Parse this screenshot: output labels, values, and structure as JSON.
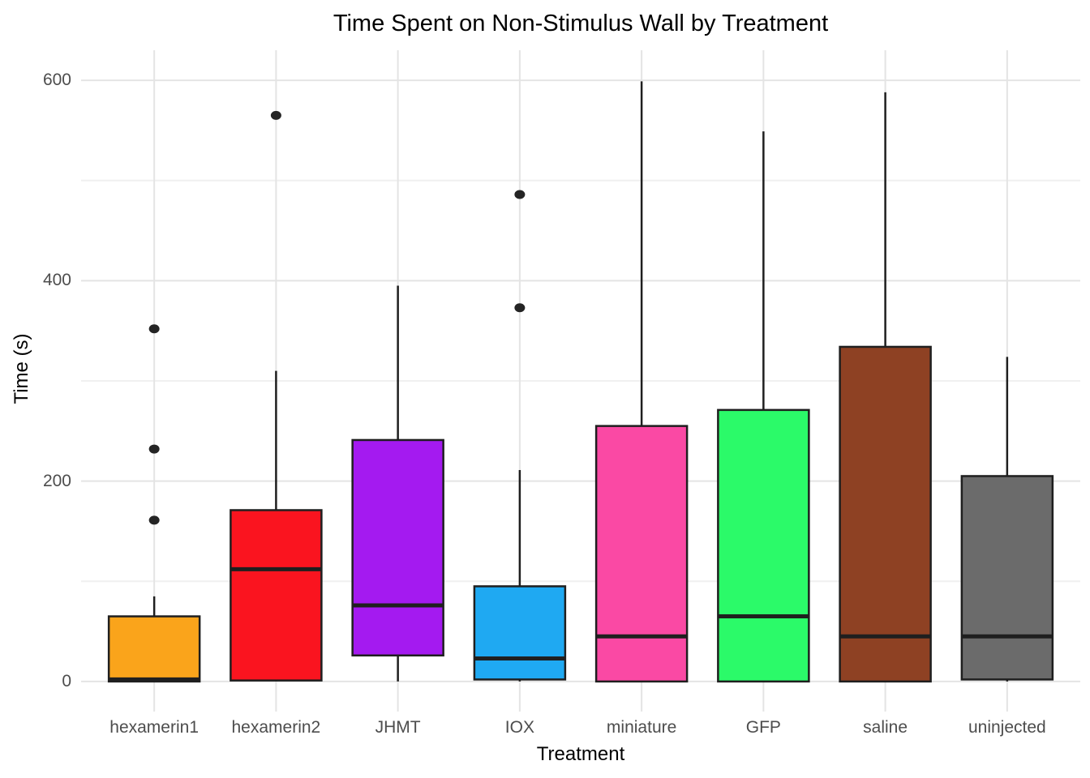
{
  "chart_data": {
    "type": "boxplot",
    "title": "Time Spent on Non-Stimulus Wall by Treatment",
    "xlabel": "Treatment",
    "ylabel": "Time (s)",
    "ylim": [
      -30,
      630
    ],
    "ytick_values": [
      0,
      200,
      400,
      600
    ],
    "ytick_labels": [
      "0",
      "200",
      "400",
      "600"
    ],
    "ytick_minor_values": [
      100,
      300,
      500
    ],
    "grid": {
      "horizontal_major": true,
      "horizontal_minor": true,
      "vertical_major_per_category": true
    },
    "legend_position": "none",
    "categories": [
      "hexamerin1",
      "hexamerin2",
      "JHMT",
      "IOX",
      "miniature",
      "GFP",
      "saline",
      "uninjected"
    ],
    "series": [
      {
        "name": "hexamerin1",
        "fill": "#FAA41B",
        "whisker_low": 0,
        "q1": 0,
        "median": 2,
        "q3": 65,
        "whisker_high": 85,
        "outliers": [
          161,
          232,
          352
        ]
      },
      {
        "name": "hexamerin2",
        "fill": "#FA141F",
        "whisker_low": 0,
        "q1": 1,
        "median": 112,
        "q3": 171,
        "whisker_high": 310,
        "outliers": [
          565
        ]
      },
      {
        "name": "JHMT",
        "fill": "#A41AF0",
        "whisker_low": 0,
        "q1": 26,
        "median": 76,
        "q3": 241,
        "whisker_high": 395,
        "outliers": []
      },
      {
        "name": "IOX",
        "fill": "#1FA9F2",
        "whisker_low": 0,
        "q1": 2,
        "median": 23,
        "q3": 95,
        "whisker_high": 211,
        "outliers": [
          373,
          486
        ]
      },
      {
        "name": "miniature",
        "fill": "#FA49A4",
        "whisker_low": 0,
        "q1": 0,
        "median": 45,
        "q3": 255,
        "whisker_high": 599,
        "outliers": []
      },
      {
        "name": "GFP",
        "fill": "#2BFA69",
        "whisker_low": 0,
        "q1": 0,
        "median": 65,
        "q3": 271,
        "whisker_high": 549,
        "outliers": []
      },
      {
        "name": "saline",
        "fill": "#8E4123",
        "whisker_low": 0,
        "q1": 0,
        "median": 45,
        "q3": 334,
        "whisker_high": 588,
        "outliers": []
      },
      {
        "name": "uninjected",
        "fill": "#6B6B6B",
        "whisker_low": 0,
        "q1": 2,
        "median": 45,
        "q3": 205,
        "whisker_high": 324,
        "outliers": []
      }
    ]
  },
  "style": {
    "background": "#FFFFFF",
    "grid_major_color": "#E4E4E4",
    "grid_minor_color": "#F0F0F0",
    "box_border_color": "#1F1F1F",
    "median_color": "#1F1F1F",
    "whisker_color": "#1F1F1F",
    "outlier_color": "#242424",
    "tick_label_color": "#4D4D4D",
    "title_color": "#000000"
  }
}
